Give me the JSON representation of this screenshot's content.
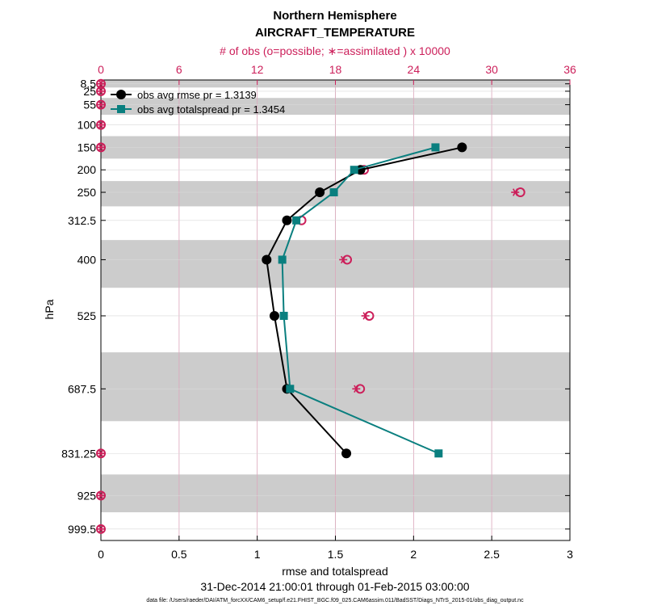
{
  "chart_data": {
    "type": "line",
    "title": "Northern Hemisphere",
    "subtitle": "AIRCRAFT_TEMPERATURE",
    "top_axis_label": "# of obs (o=possible; ∗=assimilated ) x 10000",
    "xlabel": "rmse and totalspread",
    "ylabel": "hPa",
    "date_range": "31-Dec-2014 21:00:01 through 01-Feb-2015 03:00:00",
    "data_file_note": "data file: /Users/raeder/DAI/ATM_forcXX/CAM6_setup/f.e21.FHIST_BGC.f09_025.CAM6assim.011/BadSST/Diags_NTrS_2015-01/obs_diag_output.nc",
    "xlim": [
      0,
      3
    ],
    "x_ticks": [
      "0",
      "0.5",
      "1",
      "1.5",
      "2",
      "2.5",
      "3"
    ],
    "top_xlim": [
      0,
      36
    ],
    "top_ticks": [
      "0",
      "6",
      "12",
      "18",
      "24",
      "30",
      "36"
    ],
    "pressure_levels": [
      8.5,
      25,
      55,
      100,
      150,
      200,
      250,
      312.5,
      400,
      525,
      687.5,
      831.25,
      925,
      999.5
    ],
    "y_tick_labels": [
      "8.5",
      "25",
      "55",
      "100",
      "150",
      "200",
      "250",
      "312.5",
      "400",
      "525",
      "687.5",
      "831.25",
      "925",
      "999.5"
    ],
    "series": [
      {
        "name": "obs avg rmse pr = 1.3139",
        "color": "#000000",
        "marker": "circle",
        "levels": [
          150,
          200,
          250,
          312.5,
          400,
          525,
          687.5,
          831.25
        ],
        "values": [
          2.31,
          1.66,
          1.4,
          1.19,
          1.06,
          1.11,
          1.19,
          1.57
        ]
      },
      {
        "name": "obs avg totalspread pr = 1.3454",
        "color": "#0a7f7f",
        "marker": "square",
        "levels": [
          150,
          200,
          250,
          312.5,
          400,
          525,
          687.5,
          831.25
        ],
        "values": [
          2.14,
          1.62,
          1.49,
          1.25,
          1.16,
          1.17,
          1.21,
          2.16
        ]
      }
    ],
    "obs_possible": {
      "name": "possible",
      "color": "#cc1f5a",
      "levels": [
        8.5,
        25,
        55,
        100,
        150,
        200,
        250,
        312.5,
        400,
        525,
        687.5,
        831.25,
        925,
        999.5
      ],
      "values": [
        0,
        0,
        0,
        0,
        0,
        20.2,
        32.2,
        15.4,
        18.9,
        20.6,
        19.9,
        0,
        0,
        0
      ]
    },
    "obs_assimilated": {
      "name": "assimilated",
      "color": "#cc1f5a",
      "levels": [
        8.5,
        25,
        55,
        100,
        150,
        200,
        250,
        312.5,
        400,
        525,
        687.5,
        831.25,
        925,
        999.5
      ],
      "values": [
        0,
        0,
        0,
        0,
        0,
        19.8,
        31.8,
        15.0,
        18.6,
        20.3,
        19.6,
        0,
        0,
        0
      ]
    }
  }
}
